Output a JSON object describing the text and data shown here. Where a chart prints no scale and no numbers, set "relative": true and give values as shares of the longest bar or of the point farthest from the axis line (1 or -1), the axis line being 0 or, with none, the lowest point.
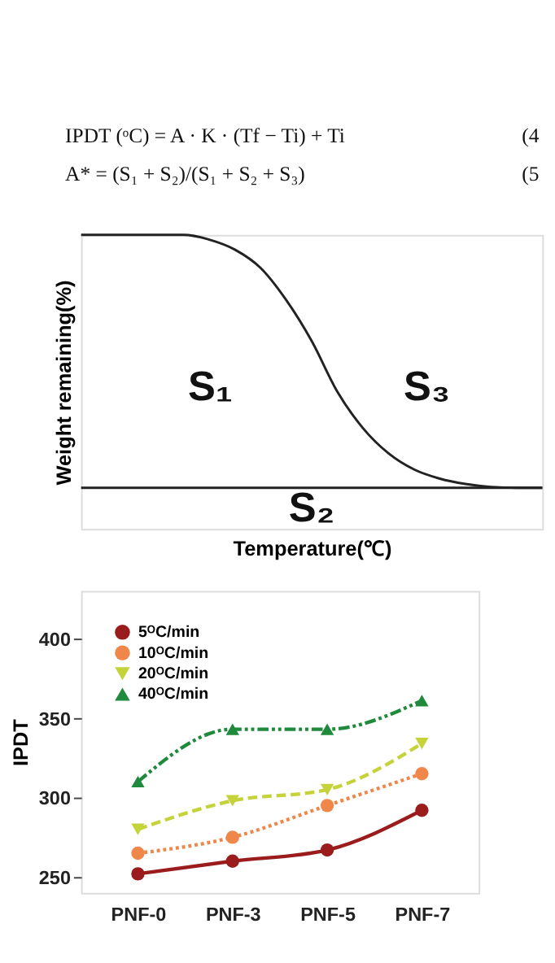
{
  "chart_data": [
    {
      "type": "line",
      "relative": true,
      "xlabel": "Temperature(℃)",
      "ylabel": "Weight remaining(%)",
      "tick_labels": false,
      "grid": false,
      "legend": false,
      "marker": "none",
      "categories": [
        null,
        null,
        null,
        null,
        null,
        null,
        null,
        null,
        null,
        null,
        null,
        null,
        null,
        null,
        null,
        null,
        null,
        null,
        null
      ],
      "series": [
        {
          "color": "#222222",
          "values": [
            1.0,
            1.0,
            1.0,
            1.0,
            1.0,
            0.984,
            0.95,
            0.888,
            0.779,
            0.639,
            0.467,
            0.343,
            0.257,
            0.202,
            0.171,
            0.153,
            0.143,
            0.14,
            0.14
          ]
        }
      ],
      "ref_lines": [
        {
          "axis": "y",
          "value": 0.14,
          "color": "#222222"
        }
      ],
      "annotations": [
        "IPDT (ᵒC) = A · K · (Tf − Ti) + Ti",
        "(4",
        "A* = (S₁ + S₂)/(S₁ + S₂ + S₃)",
        "(5",
        "S₁",
        "S₃",
        "S₂"
      ]
    },
    {
      "type": "line",
      "ylabel": "IPDT",
      "categories": [
        "PNF-0",
        "PNF-3",
        "PNF-5",
        "PNF-7"
      ],
      "ylim": [
        240,
        430
      ],
      "yticks": [
        250,
        300,
        350,
        400
      ],
      "grid": false,
      "legend": "top left",
      "series": [
        {
          "name": "5ᴼC/min",
          "color": "#9b1c1c",
          "marker": "circle",
          "line_style": "solid",
          "values": [
            252,
            260,
            267,
            292
          ]
        },
        {
          "name": "10ᴼC/min",
          "color": "#f0874a",
          "marker": "circle",
          "line_style": "dotted",
          "values": [
            265,
            275,
            295,
            315
          ]
        },
        {
          "name": "20ᴼC/min",
          "color": "#c5d33b",
          "marker": "triangle-down",
          "line_style": "dashed",
          "values": [
            280,
            298,
            305,
            334
          ]
        },
        {
          "name": "40ᴼC/min",
          "color": "#1f8a3c",
          "marker": "triangle",
          "line_style": "dashdot",
          "values": [
            310,
            343,
            343,
            361
          ]
        }
      ]
    }
  ]
}
